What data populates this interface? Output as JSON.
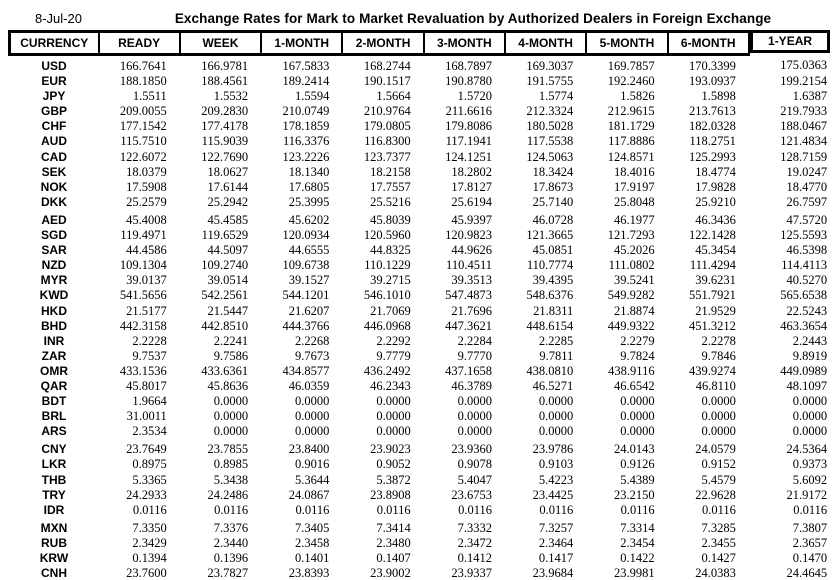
{
  "report": {
    "date": "8-Jul-20",
    "title": "Exchange Rates for Mark to Market Revaluation by Authorized Dealers in Foreign Exchange"
  },
  "colors": {
    "text": "#000000",
    "background": "#ffffff",
    "border": "#000000"
  },
  "table": {
    "columns": [
      "CURRENCY",
      "READY",
      "WEEK",
      "1-MONTH",
      "2-MONTH",
      "3-MONTH",
      "4-MONTH",
      "5-MONTH",
      "6-MONTH",
      "1-YEAR"
    ],
    "rows": [
      {
        "currency": "USD",
        "values": [
          "166.7641",
          "166.9781",
          "167.5833",
          "168.2744",
          "168.7897",
          "169.3037",
          "169.7857",
          "170.3399",
          "175.0363"
        ]
      },
      {
        "currency": "EUR",
        "values": [
          "188.1850",
          "188.4561",
          "189.2414",
          "190.1517",
          "190.8780",
          "191.5755",
          "192.2460",
          "193.0937",
          "199.2154"
        ]
      },
      {
        "currency": "JPY",
        "values": [
          "1.5511",
          "1.5532",
          "1.5594",
          "1.5664",
          "1.5720",
          "1.5774",
          "1.5826",
          "1.5898",
          "1.6387"
        ]
      },
      {
        "currency": "GBP",
        "values": [
          "209.0055",
          "209.2830",
          "210.0749",
          "210.9764",
          "211.6616",
          "212.3324",
          "212.9615",
          "213.7613",
          "219.7933"
        ]
      },
      {
        "currency": "CHF",
        "values": [
          "177.1542",
          "177.4178",
          "178.1859",
          "179.0805",
          "179.8086",
          "180.5028",
          "181.1729",
          "182.0328",
          "188.0467"
        ]
      },
      {
        "currency": "AUD",
        "values": [
          "115.7510",
          "115.9039",
          "116.3376",
          "116.8300",
          "117.1941",
          "117.5538",
          "117.8886",
          "118.2751",
          "121.4834"
        ]
      },
      {
        "currency": "CAD",
        "values": [
          "122.6072",
          "122.7690",
          "123.2226",
          "123.7377",
          "124.1251",
          "124.5063",
          "124.8571",
          "125.2993",
          "128.7159"
        ]
      },
      {
        "currency": "SEK",
        "values": [
          "18.0379",
          "18.0627",
          "18.1340",
          "18.2158",
          "18.2802",
          "18.3424",
          "18.4016",
          "18.4774",
          "19.0247"
        ]
      },
      {
        "currency": "NOK",
        "values": [
          "17.5908",
          "17.6144",
          "17.6805",
          "17.7557",
          "17.8127",
          "17.8673",
          "17.9197",
          "17.9828",
          "18.4770"
        ]
      },
      {
        "currency": "DKK",
        "values": [
          "25.2579",
          "25.2942",
          "25.3995",
          "25.5216",
          "25.6194",
          "25.7140",
          "25.8048",
          "25.9210",
          "26.7597"
        ]
      },
      {
        "currency": "AED",
        "values": [
          "45.4008",
          "45.4585",
          "45.6202",
          "45.8039",
          "45.9397",
          "46.0728",
          "46.1977",
          "46.3436",
          "47.5720"
        ]
      },
      {
        "currency": "SGD",
        "values": [
          "119.4971",
          "119.6529",
          "120.0934",
          "120.5960",
          "120.9823",
          "121.3665",
          "121.7293",
          "122.1428",
          "125.5593"
        ]
      },
      {
        "currency": "SAR",
        "values": [
          "44.4586",
          "44.5097",
          "44.6555",
          "44.8325",
          "44.9626",
          "45.0851",
          "45.2026",
          "45.3454",
          "46.5398"
        ]
      },
      {
        "currency": "NZD",
        "values": [
          "109.1304",
          "109.2740",
          "109.6738",
          "110.1229",
          "110.4511",
          "110.7774",
          "111.0802",
          "111.4294",
          "114.4113"
        ]
      },
      {
        "currency": "MYR",
        "values": [
          "39.0137",
          "39.0514",
          "39.1527",
          "39.2715",
          "39.3513",
          "39.4395",
          "39.5241",
          "39.6231",
          "40.5270"
        ]
      },
      {
        "currency": "KWD",
        "values": [
          "541.5656",
          "542.2561",
          "544.1201",
          "546.1010",
          "547.4873",
          "548.6376",
          "549.9282",
          "551.7921",
          "565.6538"
        ]
      },
      {
        "currency": "HKD",
        "values": [
          "21.5177",
          "21.5447",
          "21.6207",
          "21.7069",
          "21.7696",
          "21.8311",
          "21.8874",
          "21.9529",
          "22.5243"
        ]
      },
      {
        "currency": "BHD",
        "values": [
          "442.3158",
          "442.8510",
          "444.3766",
          "446.0968",
          "447.3621",
          "448.6154",
          "449.9322",
          "451.3212",
          "463.3654"
        ]
      },
      {
        "currency": "INR",
        "values": [
          "2.2228",
          "2.2241",
          "2.2268",
          "2.2292",
          "2.2284",
          "2.2285",
          "2.2279",
          "2.2278",
          "2.2443"
        ]
      },
      {
        "currency": "ZAR",
        "values": [
          "9.7537",
          "9.7586",
          "9.7673",
          "9.7779",
          "9.7770",
          "9.7811",
          "9.7824",
          "9.7846",
          "9.8919"
        ]
      },
      {
        "currency": "OMR",
        "values": [
          "433.1536",
          "433.6361",
          "434.8577",
          "436.2492",
          "437.1658",
          "438.0810",
          "438.9116",
          "439.9274",
          "449.0989"
        ]
      },
      {
        "currency": "QAR",
        "values": [
          "45.8017",
          "45.8636",
          "46.0359",
          "46.2343",
          "46.3789",
          "46.5271",
          "46.6542",
          "46.8110",
          "48.1097"
        ]
      },
      {
        "currency": "BDT",
        "values": [
          "1.9664",
          "0.0000",
          "0.0000",
          "0.0000",
          "0.0000",
          "0.0000",
          "0.0000",
          "0.0000",
          "0.0000"
        ]
      },
      {
        "currency": "BRL",
        "values": [
          "31.0011",
          "0.0000",
          "0.0000",
          "0.0000",
          "0.0000",
          "0.0000",
          "0.0000",
          "0.0000",
          "0.0000"
        ]
      },
      {
        "currency": "ARS",
        "values": [
          "2.3534",
          "0.0000",
          "0.0000",
          "0.0000",
          "0.0000",
          "0.0000",
          "0.0000",
          "0.0000",
          "0.0000"
        ]
      },
      {
        "currency": "CNY",
        "values": [
          "23.7649",
          "23.7855",
          "23.8400",
          "23.9023",
          "23.9360",
          "23.9786",
          "24.0143",
          "24.0579",
          "24.5364"
        ]
      },
      {
        "currency": "LKR",
        "values": [
          "0.8975",
          "0.8985",
          "0.9016",
          "0.9052",
          "0.9078",
          "0.9103",
          "0.9126",
          "0.9152",
          "0.9373"
        ]
      },
      {
        "currency": "THB",
        "values": [
          "5.3365",
          "5.3438",
          "5.3644",
          "5.3872",
          "5.4047",
          "5.4223",
          "5.4389",
          "5.4579",
          "5.6092"
        ]
      },
      {
        "currency": "TRY",
        "values": [
          "24.2933",
          "24.2486",
          "24.0867",
          "23.8908",
          "23.6753",
          "23.4425",
          "23.2150",
          "22.9628",
          "21.9172"
        ]
      },
      {
        "currency": "IDR",
        "values": [
          "0.0116",
          "0.0116",
          "0.0116",
          "0.0116",
          "0.0116",
          "0.0116",
          "0.0116",
          "0.0116",
          "0.0116"
        ]
      },
      {
        "currency": "MXN",
        "values": [
          "7.3350",
          "7.3376",
          "7.3405",
          "7.3414",
          "7.3332",
          "7.3257",
          "7.3314",
          "7.3285",
          "7.3807"
        ]
      },
      {
        "currency": "RUB",
        "values": [
          "2.3429",
          "2.3440",
          "2.3458",
          "2.3480",
          "2.3472",
          "2.3464",
          "2.3454",
          "2.3455",
          "2.3657"
        ]
      },
      {
        "currency": "KRW",
        "values": [
          "0.1394",
          "0.1396",
          "0.1401",
          "0.1407",
          "0.1412",
          "0.1417",
          "0.1422",
          "0.1427",
          "0.1470"
        ]
      },
      {
        "currency": "CNH",
        "values": [
          "23.7600",
          "23.7827",
          "23.8393",
          "23.9002",
          "23.9337",
          "23.9684",
          "23.9981",
          "24.0383",
          "24.4645"
        ]
      }
    ]
  }
}
